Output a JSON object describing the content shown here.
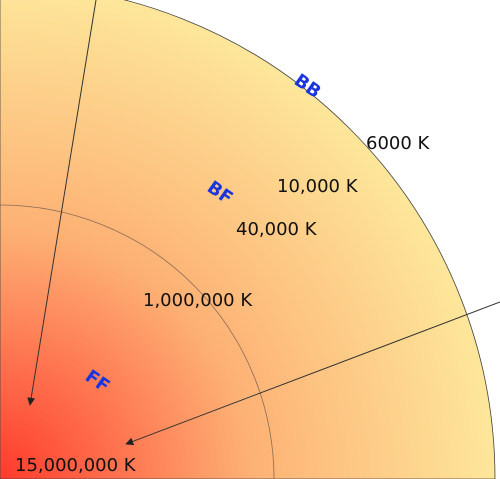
{
  "colors": {
    "gradient_center": "#ff3a2c",
    "gradient_mid": "#fdb074",
    "gradient_outer": "#fde79a",
    "zone_label": "#1a35e0",
    "line": "#333333",
    "inner_boundary": "#8a6a55"
  },
  "zone_labels": {
    "bb": "BB",
    "bf": "BF",
    "ff": "FF"
  },
  "temperature_labels": {
    "t6000": "6000 K",
    "t10000": "10,000 K",
    "t40000": "40,000 K",
    "t1000000": "1,000,000 K",
    "t15000000": "15,000,000 K"
  }
}
